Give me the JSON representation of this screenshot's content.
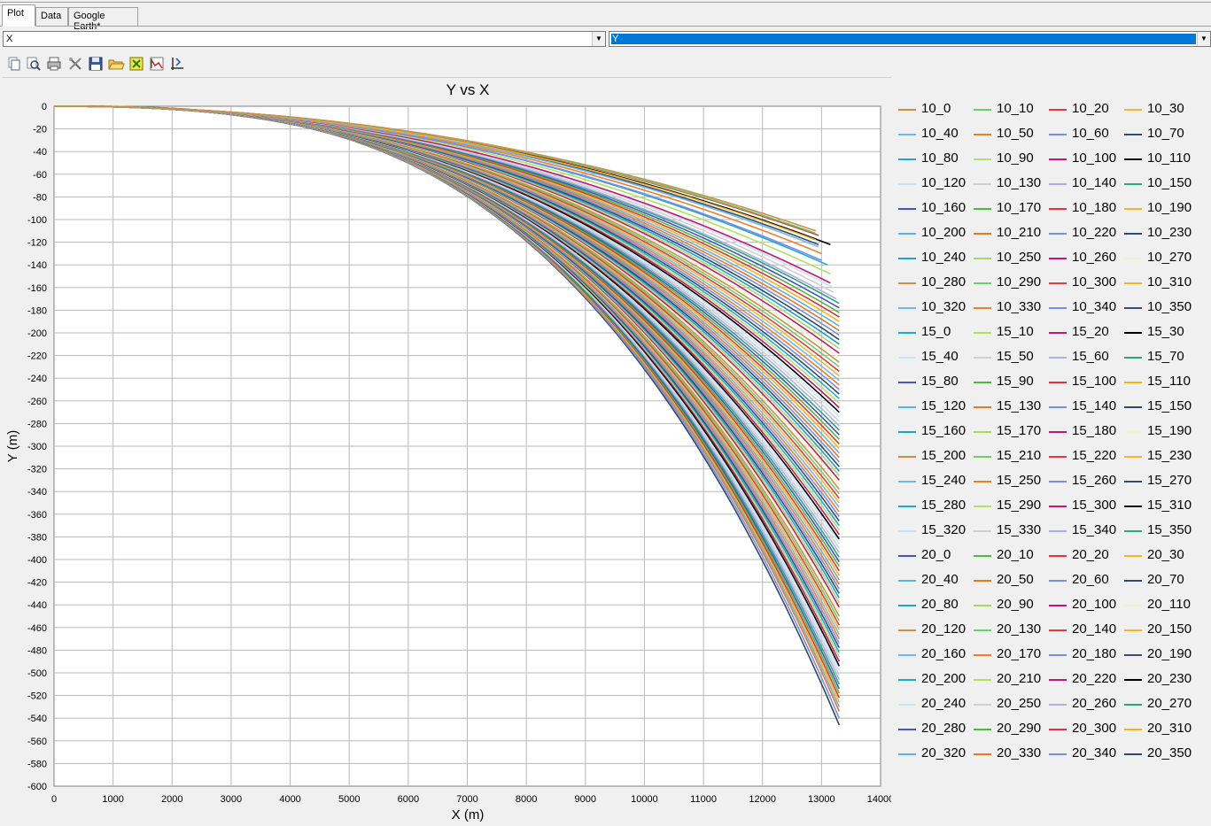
{
  "tabs": [
    {
      "label": "Plot",
      "active": true
    },
    {
      "label": "Data",
      "active": false
    },
    {
      "label": "Google Earth*",
      "active": false
    }
  ],
  "x_selector": {
    "value": "X"
  },
  "y_selector": {
    "value": "Y"
  },
  "toolbar": {
    "buttons": [
      "copy-icon",
      "zoom-icon",
      "print-icon",
      "tools-icon",
      "save-icon",
      "open-folder-icon",
      "export-icon",
      "chart-icon",
      "axis-icon"
    ]
  },
  "chart_data": {
    "type": "line",
    "title": "Y vs X",
    "xlabel": "X (m)",
    "ylabel": "Y (m)",
    "xlim": [
      0,
      14000
    ],
    "ylim": [
      -600,
      0
    ],
    "x_ticks": [
      "0",
      "1000",
      "2000",
      "3000",
      "4000",
      "5000",
      "6000",
      "7000",
      "8000",
      "9000",
      "10000",
      "11000",
      "12000",
      "13000",
      "14000"
    ],
    "y_ticks": [
      "0",
      "-20",
      "-40",
      "-60",
      "-80",
      "-100",
      "-120",
      "-140",
      "-160",
      "-180",
      "-200",
      "-220",
      "-240",
      "-260",
      "-280",
      "-300",
      "-320",
      "-340",
      "-360",
      "-380",
      "-400",
      "-420",
      "-440",
      "-460",
      "-480",
      "-500",
      "-520",
      "-540",
      "-560",
      "-580",
      "-600"
    ],
    "grid": true,
    "legend_position": "right",
    "palette": [
      "#c8904a",
      "#6ccf6c",
      "#e03c3c",
      "#f2b92e",
      "#70b8f0",
      "#f08028",
      "#7c8ce6",
      "#384c70",
      "#1fa8d0",
      "#b2e060",
      "#c4186c",
      "#000000",
      "#c8e4f4",
      "#d0d0d0",
      "#b0acec",
      "#2ea878",
      "#4650c8",
      "#4cbc3c",
      "#e63232",
      "#f8b418",
      "#60b0e8",
      "#e67828",
      "#7890dc",
      "#2e4870",
      "#20a0d0",
      "#a8d860",
      "#c01870",
      "#f2f2c8"
    ],
    "series_names": [
      "10_0",
      "10_10",
      "10_20",
      "10_30",
      "10_40",
      "10_50",
      "10_60",
      "10_70",
      "10_80",
      "10_90",
      "10_100",
      "10_110",
      "10_120",
      "10_130",
      "10_140",
      "10_150",
      "10_160",
      "10_170",
      "10_180",
      "10_190",
      "10_200",
      "10_210",
      "10_220",
      "10_230",
      "10_240",
      "10_250",
      "10_260",
      "10_270",
      "10_280",
      "10_290",
      "10_300",
      "10_310",
      "10_320",
      "10_330",
      "10_340",
      "10_350",
      "15_0",
      "15_10",
      "15_20",
      "15_30",
      "15_40",
      "15_50",
      "15_60",
      "15_70",
      "15_80",
      "15_90",
      "15_100",
      "15_110",
      "15_120",
      "15_130",
      "15_140",
      "15_150",
      "15_160",
      "15_170",
      "15_180",
      "15_190",
      "15_200",
      "15_210",
      "15_220",
      "15_230",
      "15_240",
      "15_250",
      "15_260",
      "15_270",
      "15_280",
      "15_290",
      "15_300",
      "15_310",
      "15_320",
      "15_330",
      "15_340",
      "15_350",
      "20_0",
      "20_10",
      "20_20",
      "20_30",
      "20_40",
      "20_50",
      "20_60",
      "20_70",
      "20_80",
      "20_90",
      "20_100",
      "20_110",
      "20_120",
      "20_130",
      "20_140",
      "20_150",
      "20_160",
      "20_170",
      "20_180",
      "20_190",
      "20_200",
      "20_210",
      "20_220",
      "20_230",
      "20_240",
      "20_250",
      "20_260",
      "20_270",
      "20_280",
      "20_290",
      "20_300",
      "20_310",
      "20_320",
      "20_330",
      "20_340",
      "20_350"
    ],
    "series_end_x": [
      12900,
      12900,
      12950,
      12900,
      12950,
      13000,
      13000,
      12950,
      13100,
      13150,
      13150,
      13150,
      13200,
      13200,
      13250,
      13300,
      13300,
      13300,
      13300,
      13300,
      13300,
      13300,
      13300,
      13300,
      13300,
      13300,
      13300,
      13300,
      13300,
      13300,
      13300,
      13300,
      13300,
      13300,
      13300,
      13300,
      13300,
      13300,
      13300,
      13300,
      13300,
      13300,
      13300,
      13300,
      13300,
      13300,
      13300,
      13300,
      13300,
      13300,
      13300,
      13300,
      13300,
      13300,
      13300,
      13300,
      13300,
      13300,
      13300,
      13300,
      13300,
      13300,
      13300,
      13300,
      13300,
      13300,
      13300,
      13300,
      13300,
      13300,
      13300,
      13300,
      13300,
      13300,
      13300,
      13300,
      13300,
      13300,
      13300,
      13300,
      13300,
      13300,
      13300,
      13300,
      13300,
      13300,
      13300,
      13300,
      13300,
      13300,
      13300,
      13300,
      13300,
      13300,
      13300,
      13300,
      13300,
      13300,
      13300,
      13300,
      13300,
      13300,
      13300,
      13300,
      13300,
      13300,
      13300,
      13300
    ],
    "series_end_y": [
      -110,
      -112,
      -114,
      -118,
      -124,
      -130,
      -136,
      -122,
      -140,
      -148,
      -156,
      -122,
      -160,
      -164,
      -170,
      -174,
      -178,
      -182,
      -186,
      -190,
      -194,
      -198,
      -202,
      -206,
      -210,
      -214,
      -218,
      -222,
      -226,
      -230,
      -234,
      -238,
      -242,
      -246,
      -250,
      -254,
      -258,
      -262,
      -266,
      -270,
      -274,
      -278,
      -282,
      -286,
      -290,
      -294,
      -298,
      -302,
      -306,
      -310,
      -314,
      -318,
      -322,
      -326,
      -330,
      -334,
      -338,
      -342,
      -346,
      -350,
      -354,
      -358,
      -362,
      -366,
      -370,
      -374,
      -378,
      -382,
      -386,
      -390,
      -394,
      -398,
      -402,
      -406,
      -410,
      -414,
      -418,
      -422,
      -426,
      -430,
      -434,
      -438,
      -442,
      -446,
      -450,
      -454,
      -458,
      -462,
      -466,
      -470,
      -474,
      -478,
      -482,
      -486,
      -490,
      -494,
      -498,
      -502,
      -506,
      -510,
      -514,
      -518,
      -522,
      -526,
      -530,
      -534,
      -540,
      -546
    ]
  }
}
